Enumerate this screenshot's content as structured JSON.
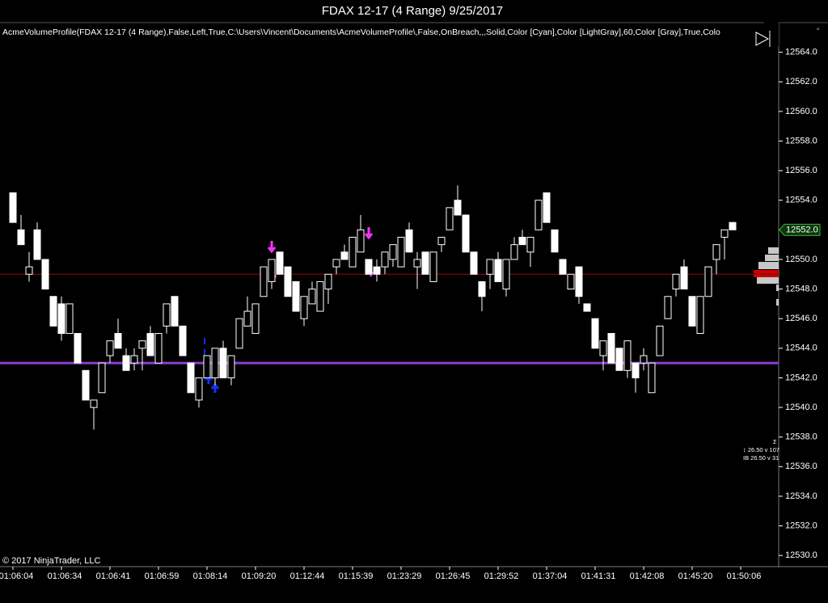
{
  "chart_data": {
    "type": "candlestick",
    "title": "FDAX 12-17 (4 Range)  9/25/2017",
    "indicator_label": "AcmeVolumeProfile(FDAX 12-17 (4 Range),False,Left,True,C:\\Users\\Vincent\\Documents\\AcmeVolumeProfile\\,False,OnBreach,,,Solid,Color [Cyan],Color [LightGray],60,Color [Gray],True,Colo",
    "copyright": "© 2017 NinjaTrader, LLC",
    "stats": [
      "Σ",
      "↕ 26.50 v 107",
      "IB 26.50 v 31"
    ],
    "x_labels": [
      "01:06:04",
      "01:06:34",
      "01:06:41",
      "01:06:59",
      "01:08:14",
      "01:09:20",
      "01:12:44",
      "01:15:39",
      "01:23:29",
      "01:26:45",
      "01:29:52",
      "01:37:04",
      "01:41:31",
      "01:42:08",
      "01:45:20",
      "01:50:06"
    ],
    "open": [
      12554.5,
      12552,
      12549,
      12552,
      12550,
      12547.5,
      12547,
      12545,
      12545,
      12542.5,
      12540,
      12541,
      12543.5,
      12545,
      12543.5,
      12543,
      12544,
      12545,
      12543,
      12545.5,
      12547.5,
      12545.5,
      12543,
      12540.5,
      12542,
      12542,
      12544,
      12542,
      12544,
      12545.5,
      12545,
      12547.5,
      12548.5,
      12550.5,
      12549.5,
      12548.5,
      12546,
      12547,
      12546.5,
      12548,
      12549.5,
      12550.5,
      12549.5,
      12550.5,
      12550,
      12549.5,
      12549.5,
      12550,
      12549.5,
      12552,
      12549.5,
      12550.5,
      12548.5,
      12551,
      12552,
      12554,
      12553,
      12550.5,
      12548.5,
      12549,
      12550,
      12548,
      12550,
      12551.5,
      12550.5,
      12552,
      12554.5,
      12552,
      12550,
      12548,
      12549.5,
      12547,
      12546,
      12543.5,
      12545,
      12544,
      12542.5,
      12543,
      12543,
      12541,
      12543.5,
      12546,
      12548,
      12549.5,
      12547.5,
      12545,
      12547.5,
      12550,
      12551.5,
      12552.5
    ],
    "high": [
      12554.5,
      12553,
      12550.5,
      12552.5,
      12550,
      12547.5,
      12547.5,
      12547,
      12545,
      12542.5,
      12540.5,
      12543,
      12544.5,
      12546,
      12544,
      12544,
      12544.5,
      12545.5,
      12545,
      12547,
      12547.5,
      12545.5,
      12543,
      12542,
      12543.5,
      12544,
      12544.5,
      12543.5,
      12546,
      12547.5,
      12547,
      12549.5,
      12550,
      12550.5,
      12549.5,
      12548.5,
      12547.5,
      12548.5,
      12548.5,
      12549,
      12550,
      12551,
      12551.5,
      12553,
      12550,
      12550,
      12550.5,
      12551,
      12551.5,
      12552.5,
      12550.5,
      12550.5,
      12550.5,
      12551.5,
      12553.5,
      12555,
      12553,
      12550.5,
      12548.5,
      12550,
      12550.5,
      12550,
      12551.5,
      12552,
      12551.5,
      12554,
      12554.5,
      12552,
      12550,
      12549,
      12549.5,
      12547,
      12546,
      12544.5,
      12545,
      12544,
      12544.5,
      12543,
      12544,
      12543,
      12545.5,
      12547.5,
      12549,
      12550,
      12547.5,
      12547.5,
      12549.5,
      12551,
      12552,
      12552.5
    ],
    "low": [
      12552.5,
      12551,
      12548.5,
      12550,
      12548,
      12545.5,
      12544.5,
      12545,
      12543,
      12540.5,
      12538.5,
      12541,
      12543,
      12544,
      12542.5,
      12542.5,
      12542.5,
      12543.5,
      12543,
      12545,
      12545.5,
      12543.5,
      12541,
      12540,
      12542,
      12541.5,
      12542,
      12541.5,
      12544,
      12545.5,
      12545,
      12547.5,
      12548,
      12549,
      12547.5,
      12546.5,
      12545.5,
      12547,
      12546.5,
      12547,
      12549,
      12550,
      12549.5,
      12550.5,
      12549,
      12548.5,
      12549,
      12549.5,
      12549.5,
      12550.5,
      12548,
      12549,
      12548.5,
      12550.5,
      12552,
      12553,
      12550.5,
      12549,
      12546.5,
      12548,
      12548.5,
      12547.5,
      12550,
      12551,
      12549.5,
      12552,
      12552.5,
      12550.5,
      12549,
      12548,
      12547,
      12546.5,
      12544,
      12542.5,
      12543,
      12542.5,
      12542,
      12541,
      12542.5,
      12541,
      12543.5,
      12546,
      12547.5,
      12548,
      12545.5,
      12545,
      12547.5,
      12549,
      12550,
      12552
    ],
    "close": [
      12552.5,
      12551,
      12549.5,
      12550,
      12548,
      12545.5,
      12545,
      12547,
      12543,
      12540.5,
      12540.5,
      12543,
      12544.5,
      12544,
      12542.5,
      12543.5,
      12544.5,
      12543.5,
      12545,
      12547,
      12545.5,
      12543.5,
      12541,
      12542,
      12543.5,
      12544,
      12542,
      12543.5,
      12546,
      12546.5,
      12547,
      12549.5,
      12550,
      12549,
      12547.5,
      12546.5,
      12547.5,
      12548,
      12548.5,
      12549,
      12550,
      12550,
      12551.5,
      12552,
      12549,
      12549,
      12550.5,
      12551,
      12551.5,
      12550.5,
      12550,
      12549,
      12550.5,
      12551.5,
      12553.5,
      12553,
      12550.5,
      12549,
      12547.5,
      12550,
      12548.5,
      12550,
      12551,
      12551,
      12551.5,
      12554,
      12552.5,
      12550.5,
      12549,
      12549,
      12547.5,
      12546.5,
      12544,
      12544.5,
      12543,
      12542.5,
      12544.5,
      12542,
      12543.5,
      12543,
      12545.5,
      12547.5,
      12549,
      12548,
      12545.5,
      12547.5,
      12549.5,
      12551,
      12552,
      12552
    ],
    "up_color": "#000000",
    "down_color": "#ffffff",
    "outline_color": "#ffffff",
    "ylim": [
      12529.3,
      12566
    ],
    "yticks": [
      {
        "value": 12530,
        "label": "12530.0"
      },
      {
        "value": 12532,
        "label": "12532.0"
      },
      {
        "value": 12534,
        "label": "12534.0"
      },
      {
        "value": 12536,
        "label": "12536.0"
      },
      {
        "value": 12538,
        "label": "12538.0"
      },
      {
        "value": 12540,
        "label": "12540.0"
      },
      {
        "value": 12542,
        "label": "12542.0"
      },
      {
        "value": 12544,
        "label": "12544.0"
      },
      {
        "value": 12546,
        "label": "12546.0"
      },
      {
        "value": 12548,
        "label": "12548.0"
      },
      {
        "value": 12550,
        "label": "12550.0"
      },
      {
        "value": 12552,
        "label": "12552.0"
      },
      {
        "value": 12554,
        "label": "12554.0"
      },
      {
        "value": 12556,
        "label": "12556.0"
      },
      {
        "value": 12558,
        "label": "12558.0"
      },
      {
        "value": 12560,
        "label": "12560.0"
      },
      {
        "value": 12562,
        "label": "12562.0"
      },
      {
        "value": 12564,
        "label": "12564.0"
      }
    ],
    "horizontal_lines": [
      {
        "value": 12549,
        "color": "#7a0a0a"
      },
      {
        "value": 12543,
        "color": "#8a3fd0"
      }
    ],
    "last_price": {
      "value": 12552,
      "label": "12552.0"
    },
    "grid": false
  }
}
